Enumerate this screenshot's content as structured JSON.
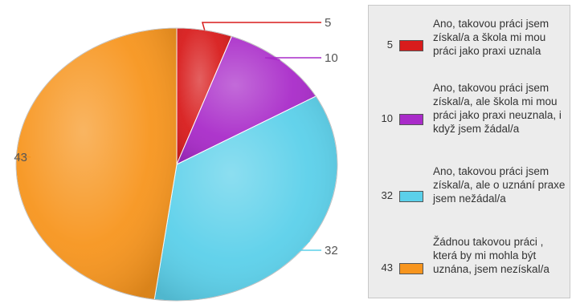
{
  "chart_data": {
    "type": "pie",
    "slices": [
      {
        "label": "Ano, takovou práci jsem získal/a a škola mi mou práci jako praxi uznala",
        "value": 5,
        "color": "#d81c1c"
      },
      {
        "label": "Ano, takovou práci jsem získal/a, ale škola mi mou práci jako praxi neuznala, i když jsem žádal/a",
        "value": 10,
        "color": "#a92bc9"
      },
      {
        "label": "Ano, takovou práci jsem získal/a, ale o uznání praxe jsem nežádal/a",
        "value": 32,
        "color": "#5bd0ea"
      },
      {
        "label": "Žádnou takovou práci , která by mi mohla být uznána, jsem nezískal/a",
        "value": 43,
        "color": "#f7951e"
      }
    ],
    "legend_position": "right"
  }
}
